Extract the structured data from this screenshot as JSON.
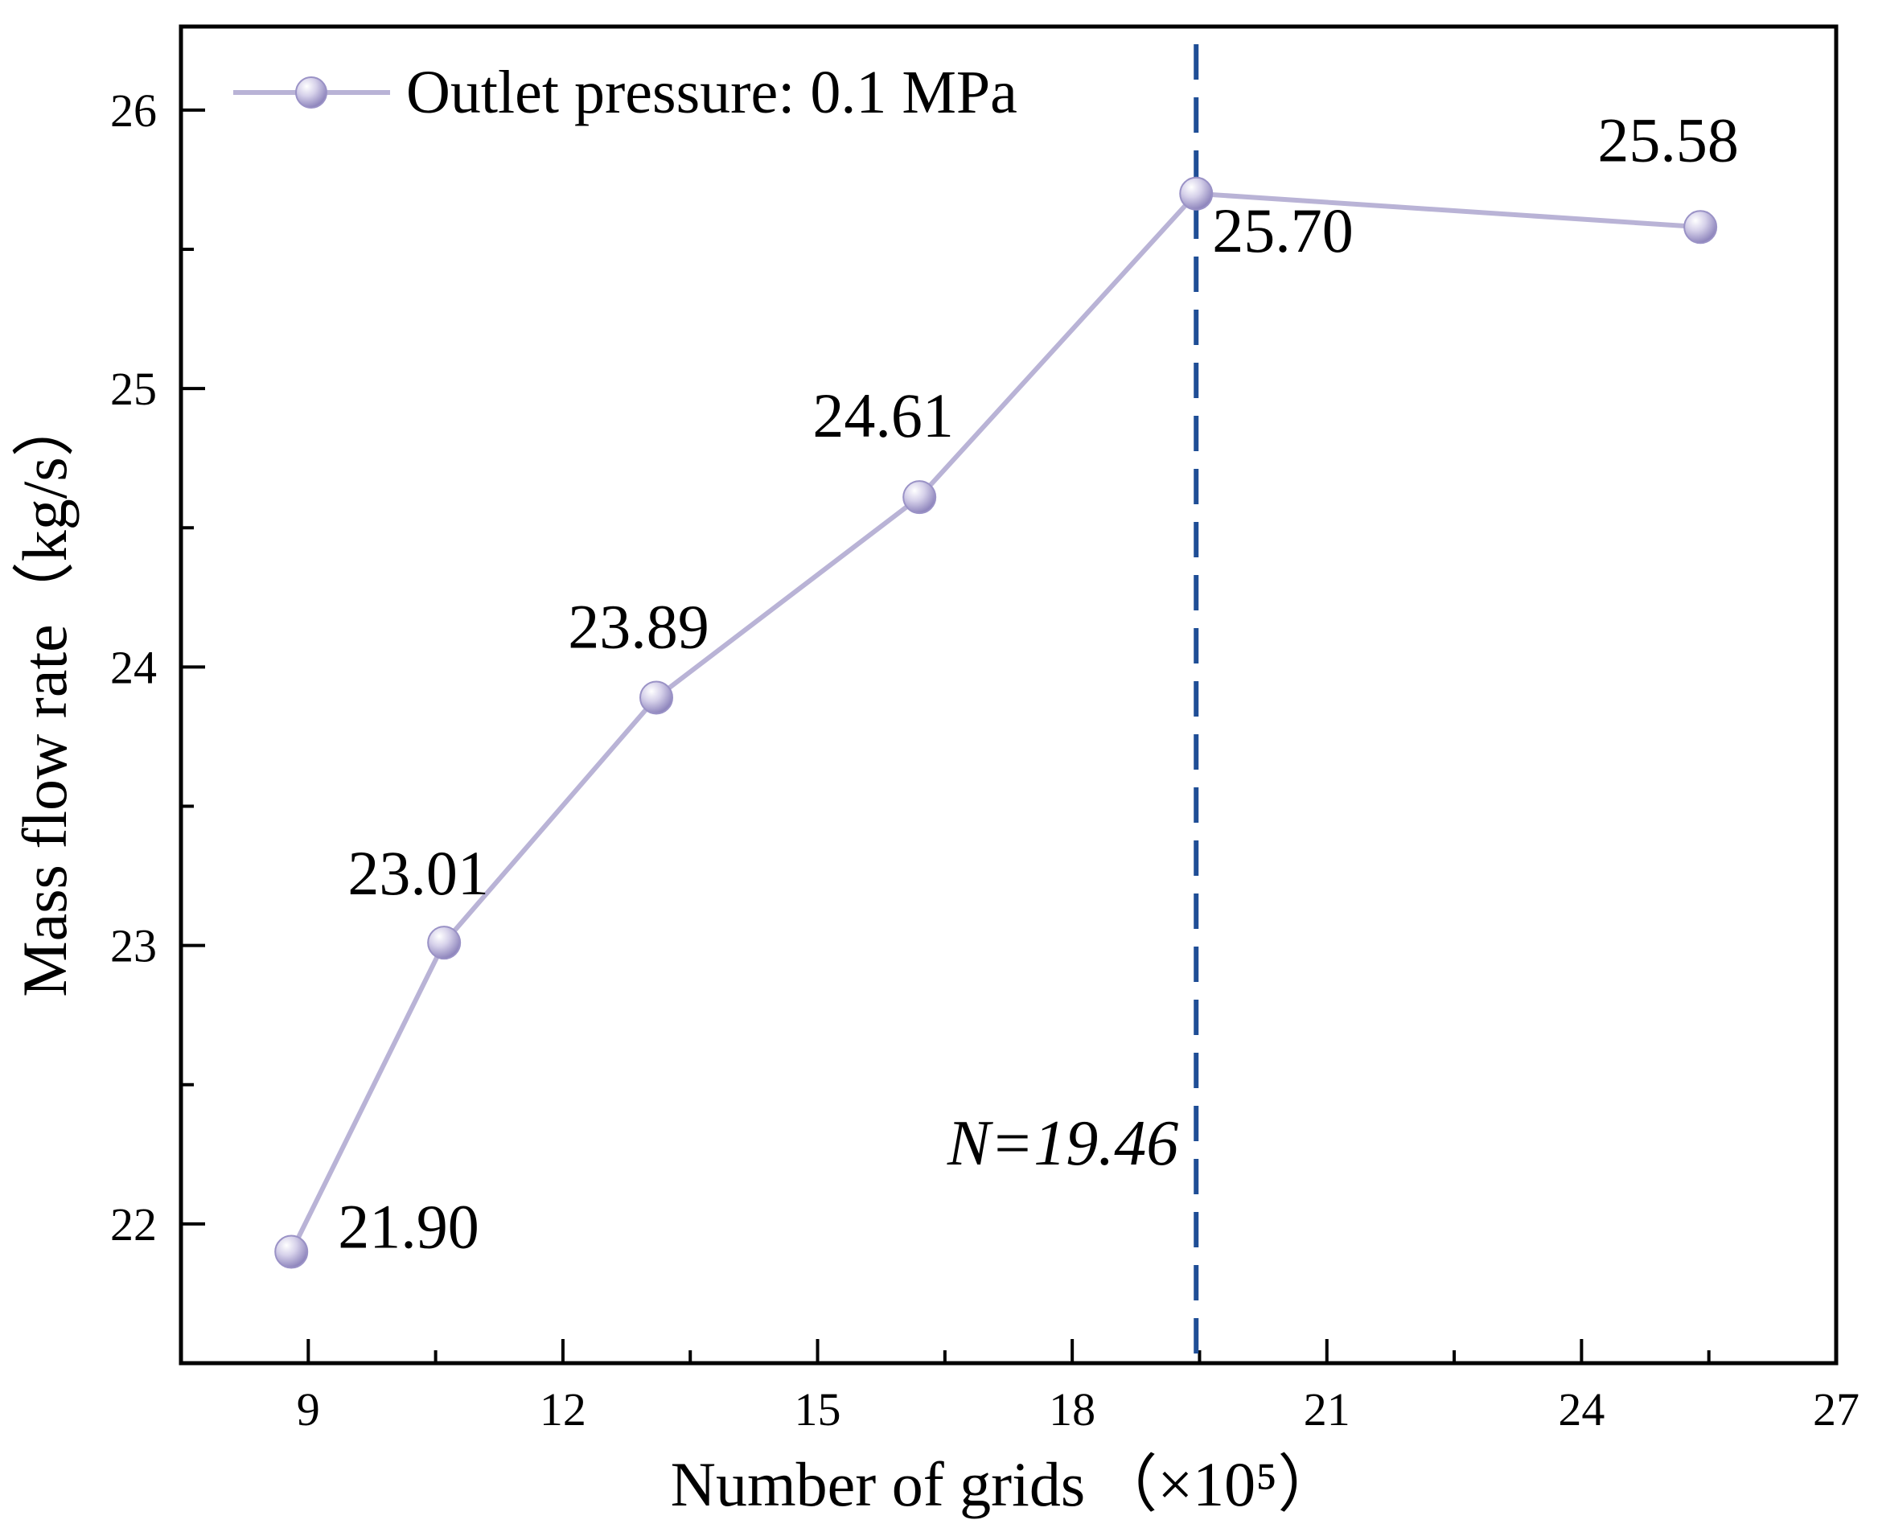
{
  "chart_data": {
    "type": "line",
    "xlabel": "Number of grids",
    "xlabel_unit": "（×10⁵）",
    "ylabel": "Mass flow rate（kg/s）",
    "xlim": [
      7.5,
      27
    ],
    "ylim": [
      21.5,
      26.3
    ],
    "x_ticks": [
      9,
      12,
      15,
      18,
      21,
      24,
      27
    ],
    "x_tick_labels": [
      "9",
      "12",
      "15",
      "18",
      "21",
      "24",
      "27"
    ],
    "y_ticks": [
      22,
      23,
      24,
      25,
      26
    ],
    "y_tick_labels": [
      "22",
      "23",
      "24",
      "25",
      "26"
    ],
    "legend_position": "top-left",
    "grid": false,
    "series": [
      {
        "name": "Outlet pressure: 0.1 MPa",
        "color": "#b9b3d6",
        "x": [
          8.8,
          10.6,
          13.1,
          16.2,
          19.46,
          25.4
        ],
        "y": [
          21.9,
          23.01,
          23.89,
          24.61,
          25.7,
          25.58
        ],
        "labels": [
          "21.90",
          "23.01",
          "23.89",
          "24.61",
          "25.70",
          "25.58"
        ]
      }
    ],
    "reference_line": {
      "x": 19.46,
      "label": "N=19.46",
      "color": "#1f4e96"
    }
  }
}
